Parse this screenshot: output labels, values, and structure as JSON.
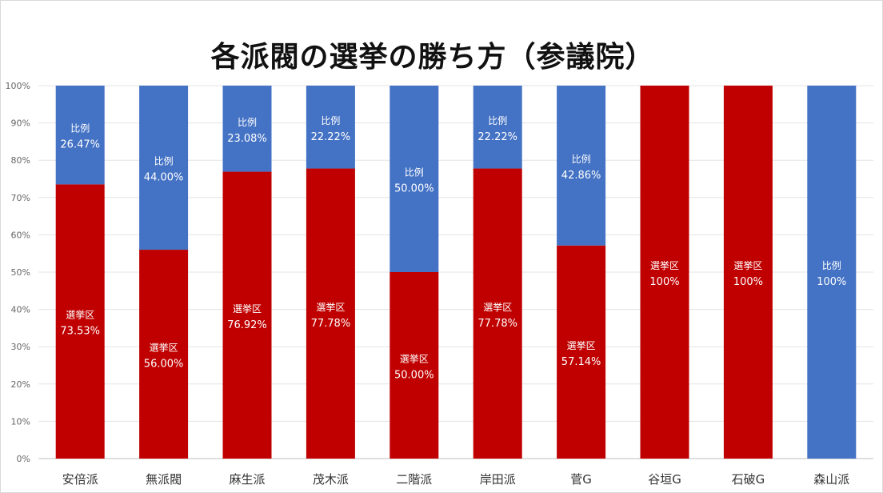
{
  "chart_data": {
    "type": "bar",
    "stacked": true,
    "title": "各派閥の選挙の勝ち方（参議院）",
    "categories": [
      "安倍派",
      "無派閥",
      "麻生派",
      "茂木派",
      "二階派",
      "岸田派",
      "菅G",
      "谷垣G",
      "石破G",
      "森山派"
    ],
    "y_ticks": [
      "0%",
      "10%",
      "20%",
      "30%",
      "40%",
      "50%",
      "60%",
      "70%",
      "80%",
      "90%",
      "100%"
    ],
    "ylim": [
      0,
      100
    ],
    "series": [
      {
        "name": "選挙区",
        "color": "#c00000",
        "values": [
          73.53,
          56.0,
          76.92,
          77.78,
          50.0,
          77.78,
          57.14,
          100,
          100,
          0
        ],
        "labels": [
          "73.53%",
          "56.00%",
          "76.92%",
          "77.78%",
          "50.00%",
          "77.78%",
          "57.14%",
          "100%",
          "100%",
          ""
        ]
      },
      {
        "name": "比例",
        "color": "#4472c4",
        "values": [
          26.47,
          44.0,
          23.08,
          22.22,
          50.0,
          22.22,
          42.86,
          0,
          0,
          100
        ],
        "labels": [
          "26.47%",
          "44.00%",
          "23.08%",
          "22.22%",
          "50.00%",
          "22.22%",
          "42.86%",
          "",
          "",
          "100%"
        ]
      }
    ]
  }
}
